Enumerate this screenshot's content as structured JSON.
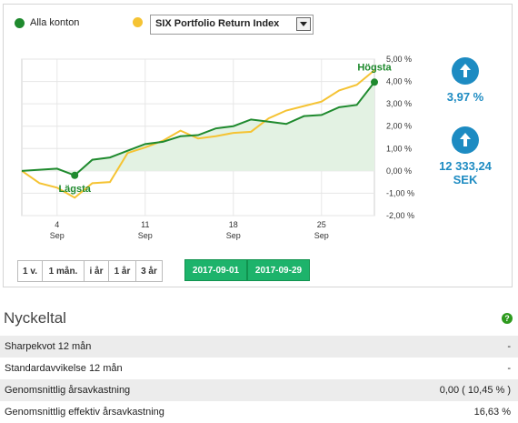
{
  "legend": {
    "series1": {
      "label": "Alla konton",
      "color": "#1f8a2e"
    },
    "series2": {
      "color": "#f5c333"
    },
    "select_value": "SIX Portfolio Return Index"
  },
  "chart_data": {
    "type": "line",
    "y_ticks": [
      "5,00 %",
      "4,00 %",
      "3,00 %",
      "2,00 %",
      "1,00 %",
      "0,00 %",
      "-1,00 %",
      "-2,00 %"
    ],
    "ylim": [
      -2,
      5
    ],
    "x_ticks": [
      {
        "day": "4",
        "month": "Sep",
        "index": 2
      },
      {
        "day": "11",
        "month": "Sep",
        "index": 7
      },
      {
        "day": "18",
        "month": "Sep",
        "index": 12
      },
      {
        "day": "25",
        "month": "Sep",
        "index": 17
      }
    ],
    "series": [
      {
        "name": "Alla konton",
        "color": "#1f8a2e",
        "values": [
          0.0,
          0.05,
          0.1,
          -0.2,
          0.5,
          0.6,
          0.9,
          1.2,
          1.3,
          1.55,
          1.6,
          1.9,
          2.0,
          2.3,
          2.2,
          2.1,
          2.45,
          2.5,
          2.85,
          2.95,
          3.97
        ]
      },
      {
        "name": "SIX Portfolio Return Index",
        "color": "#f5c333",
        "values": [
          0.0,
          -0.55,
          -0.75,
          -1.2,
          -0.55,
          -0.5,
          0.8,
          1.05,
          1.35,
          1.8,
          1.45,
          1.55,
          1.7,
          1.75,
          2.35,
          2.7,
          2.9,
          3.1,
          3.6,
          3.85,
          4.5
        ]
      }
    ],
    "annotations": {
      "min_label": "Lägsta",
      "min_index": 3,
      "max_label": "Högsta",
      "max_index": 20
    }
  },
  "stats": {
    "return_value": "3,97 %",
    "amount_value": "12 333,24",
    "amount_unit": "SEK"
  },
  "periods": [
    "1 v.",
    "1 mån.",
    "i år",
    "1 år",
    "3 år"
  ],
  "dates": {
    "from": "2017-09-01",
    "to": "2017-09-29"
  },
  "nyckeltal": {
    "title": "Nyckeltal",
    "help": "?",
    "rows": [
      {
        "label": "Sharpekvot 12 mån",
        "value": "-"
      },
      {
        "label": "Standardavvikelse 12 mån",
        "value": "-"
      },
      {
        "label": "Genomsnittlig årsavkastning",
        "value": "0,00 ( 10,45 % )"
      },
      {
        "label": "Genomsnittlig effektiv årsavkastning",
        "value": "16,63 %"
      }
    ]
  }
}
